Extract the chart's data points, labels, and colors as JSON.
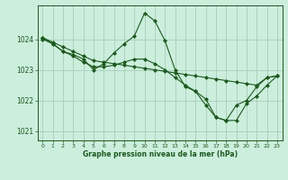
{
  "title": "Graphe pression niveau de la mer (hPa)",
  "bg_color": "#cceedd",
  "grid_color": "#aaccbb",
  "line_color": "#1a5c1a",
  "marker_color": "#1a5c1a",
  "xlim": [
    -0.5,
    23.5
  ],
  "ylim": [
    1020.7,
    1025.1
  ],
  "yticks": [
    1021,
    1022,
    1023,
    1024
  ],
  "xticks": [
    0,
    1,
    2,
    3,
    4,
    5,
    6,
    7,
    8,
    9,
    10,
    11,
    12,
    13,
    14,
    15,
    16,
    17,
    18,
    19,
    20,
    21,
    22,
    23
  ],
  "series": [
    {
      "x": [
        0,
        1,
        2,
        3,
        4,
        5,
        6,
        7,
        8,
        9,
        10,
        11,
        12,
        13,
        14,
        15,
        16,
        17,
        18,
        19,
        20,
        21,
        22,
        23
      ],
      "y": [
        1024.0,
        1023.85,
        1023.6,
        1023.5,
        1023.35,
        1023.0,
        1023.2,
        1023.55,
        1023.85,
        1024.1,
        1024.85,
        1024.6,
        1023.95,
        1023.0,
        1022.45,
        1022.3,
        1021.85,
        1021.45,
        1021.35,
        1021.85,
        1022.0,
        1022.45,
        1022.75,
        1022.8
      ]
    },
    {
      "x": [
        0,
        1,
        2,
        3,
        4,
        5,
        6,
        7,
        8,
        9,
        10,
        11,
        12,
        13,
        14,
        15,
        16,
        17,
        18,
        19,
        20,
        21,
        22,
        23
      ],
      "y": [
        1024.05,
        1023.85,
        1023.6,
        1023.45,
        1023.25,
        1023.1,
        1023.1,
        1023.15,
        1023.25,
        1023.35,
        1023.35,
        1023.2,
        1023.0,
        1022.75,
        1022.5,
        1022.3,
        1022.05,
        1021.45,
        1021.35,
        1021.35,
        1021.9,
        1022.15,
        1022.5,
        1022.8
      ]
    },
    {
      "x": [
        0,
        1,
        2,
        3,
        4,
        5,
        6,
        7,
        8,
        9,
        10,
        11,
        12,
        13,
        14,
        15,
        16,
        17,
        18,
        19,
        20,
        21,
        22,
        23
      ],
      "y": [
        1024.05,
        1023.9,
        1023.75,
        1023.6,
        1023.45,
        1023.3,
        1023.25,
        1023.2,
        1023.15,
        1023.1,
        1023.05,
        1023.0,
        1022.95,
        1022.9,
        1022.85,
        1022.8,
        1022.75,
        1022.7,
        1022.65,
        1022.6,
        1022.55,
        1022.5,
        1022.75,
        1022.8
      ]
    }
  ]
}
